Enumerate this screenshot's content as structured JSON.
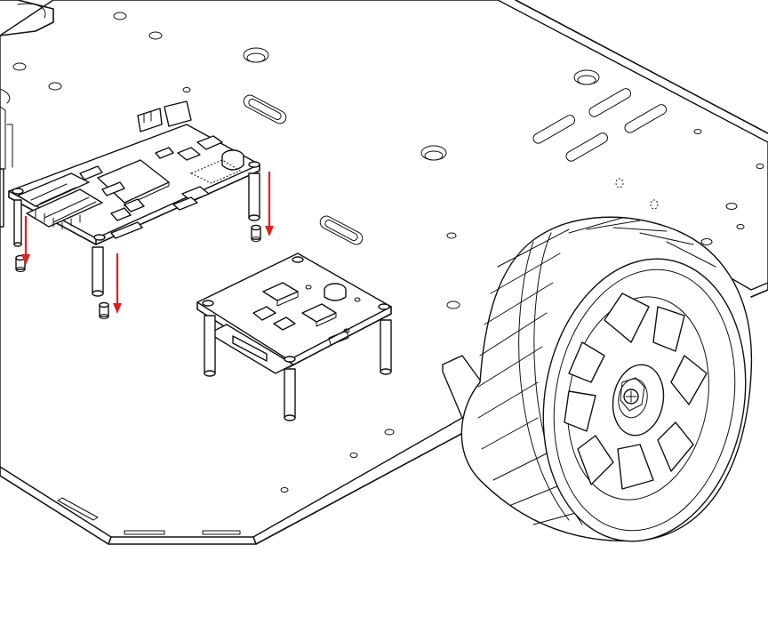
{
  "diagram": {
    "kind": "assembly-illustration",
    "components": [
      {
        "name": "chassis-plate"
      },
      {
        "name": "main-controller-board"
      },
      {
        "name": "motor-driver-board"
      },
      {
        "name": "wheel"
      }
    ],
    "arrow_count": 3,
    "colors": {
      "line": "#111111",
      "arrow": "#e02020",
      "background": "#ffffff"
    }
  }
}
